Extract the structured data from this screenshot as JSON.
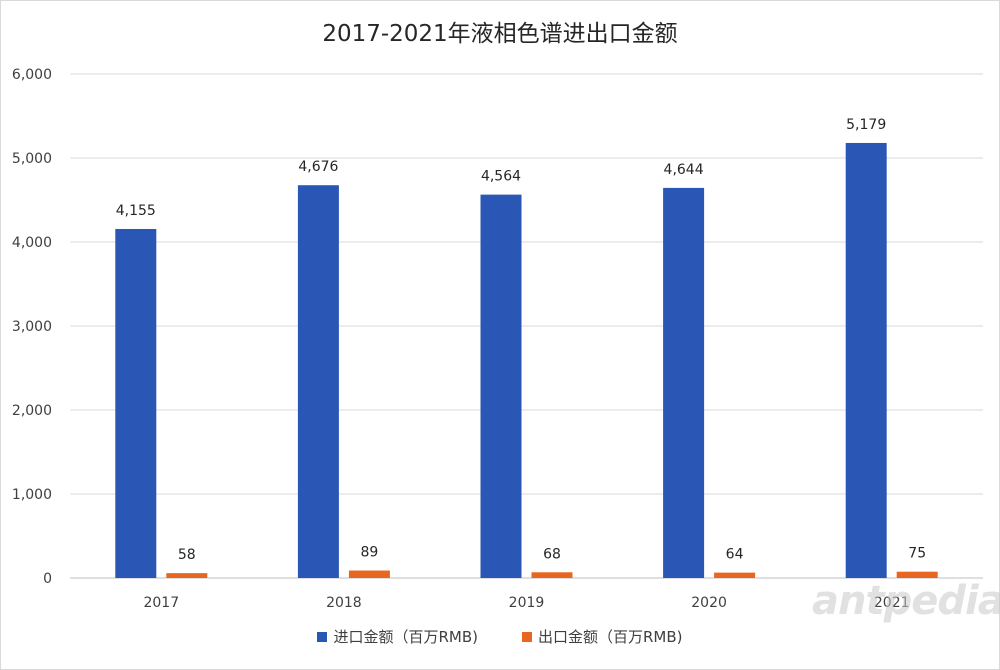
{
  "chart_data": {
    "type": "bar",
    "title": "2017-2021年液相色谱进出口金额",
    "categories": [
      "2017",
      "2018",
      "2019",
      "2020",
      "2021"
    ],
    "series": [
      {
        "name": "进口金额（百万RMB)",
        "values": [
          4155,
          4676,
          4564,
          4644,
          5179
        ],
        "color": "#2a57b5"
      },
      {
        "name": "出口金额（百万RMB)",
        "values": [
          58,
          89,
          68,
          64,
          75
        ],
        "color": "#e8661f"
      }
    ],
    "data_labels": [
      [
        "4,155",
        "4,676",
        "4,564",
        "4,644",
        "5,179"
      ],
      [
        "58",
        "89",
        "68",
        "64",
        "75"
      ]
    ],
    "yticks": [
      "0",
      "1,000",
      "2,000",
      "3,000",
      "4,000",
      "5,000",
      "6,000"
    ],
    "ylim": [
      0,
      6000
    ],
    "grid": true,
    "legend_position": "bottom"
  },
  "watermark": "antpedia"
}
